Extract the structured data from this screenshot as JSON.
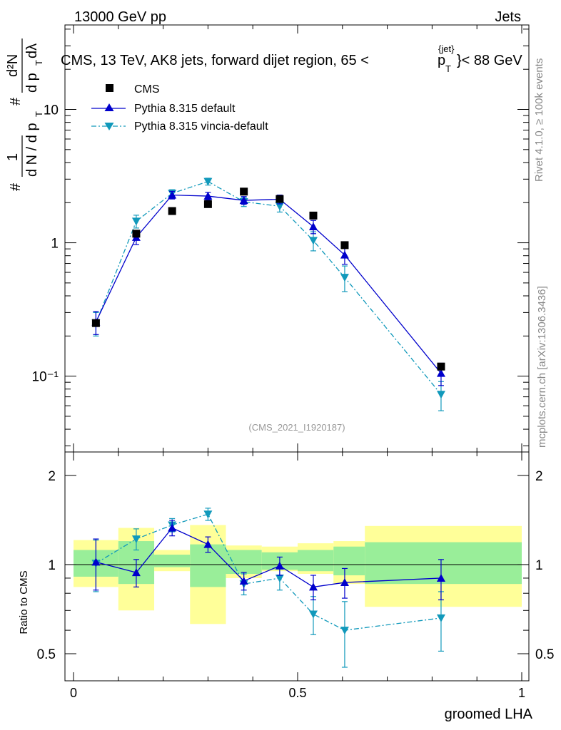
{
  "header": {
    "energy": "13000 GeV pp",
    "category": "Jets"
  },
  "plot_title": {
    "prefix": "CMS, 13 TeV, AK8 jets, forward dijet region, 65 <",
    "p": "p",
    "sub": "T",
    "sup": "{jet}",
    "suffix": "}< 88 GeV"
  },
  "side": {
    "rivet": "Rivet 4.1.0, ≥ 100k events",
    "mcplots": "mcplots.cern.ch [arXiv:1306.3436]"
  },
  "watermark": "(CMS_2021_I1920187)",
  "main_ylabel": {
    "hash": "#",
    "one": "1",
    "dn": "d N / d p",
    "t": "T",
    "d2n": "d²N",
    "dpt": "d p",
    "dlambda": "dλ"
  },
  "legend": {
    "cms": "CMS",
    "pythia_default": "Pythia 8.315 default",
    "pythia_vincia": "Pythia 8.315 vincia-default"
  },
  "colors": {
    "data": "#000000",
    "default": "#0000cc",
    "vincia": "#1199bb",
    "band_outer": "#ffff99",
    "band_inner": "#99ee99"
  },
  "chart_data": [
    {
      "type": "scatter",
      "title": "CMS, 13 TeV, AK8 jets, forward dijet region, 65 < p_T^{jet} < 88 GeV",
      "xlabel": "groomed LHA",
      "ylabel": "1/dN/dpT d²N/dpT dλ",
      "yscale": "log",
      "xlim": [
        0,
        1
      ],
      "ylim": [
        0.027,
        43
      ],
      "ytick_labels": [
        "10⁻¹",
        "1",
        "10"
      ],
      "series": [
        {
          "name": "CMS",
          "x": [
            0.05,
            0.14,
            0.22,
            0.3,
            0.38,
            0.46,
            0.535,
            0.605,
            0.82
          ],
          "values": [
            0.25,
            1.17,
            1.73,
            1.95,
            2.42,
            2.13,
            1.6,
            0.96,
            0.118
          ]
        },
        {
          "name": "Pythia 8.315 default",
          "x": [
            0.05,
            0.14,
            0.22,
            0.3,
            0.38,
            0.46,
            0.535,
            0.605,
            0.82
          ],
          "values": [
            0.255,
            1.1,
            2.28,
            2.24,
            2.08,
            2.12,
            1.32,
            0.81,
            0.105
          ],
          "err": [
            0.05,
            0.13,
            0.15,
            0.15,
            0.14,
            0.16,
            0.15,
            0.12,
            0.02
          ]
        },
        {
          "name": "Pythia 8.315 vincia-default",
          "x": [
            0.05,
            0.14,
            0.22,
            0.3,
            0.38,
            0.46,
            0.535,
            0.605,
            0.82
          ],
          "values": [
            0.25,
            1.45,
            2.35,
            2.88,
            2.03,
            1.88,
            1.04,
            0.55,
            0.073
          ],
          "err": [
            0.05,
            0.16,
            0.15,
            0.17,
            0.16,
            0.18,
            0.17,
            0.12,
            0.018
          ]
        }
      ]
    },
    {
      "type": "scatter",
      "xlabel": "groomed LHA",
      "ylabel": "Ratio to CMS",
      "xlim": [
        0,
        1
      ],
      "ylim": [
        0.405,
        2.4
      ],
      "xtick_labels": [
        "0",
        "0.5",
        "1"
      ],
      "ytick_labels": [
        "0.5",
        "1",
        "2"
      ],
      "bands": {
        "edges": [
          0,
          0.1,
          0.18,
          0.26,
          0.34,
          0.42,
          0.5,
          0.58,
          0.65,
          1.0
        ],
        "outer_low": [
          0.84,
          0.7,
          0.95,
          0.63,
          0.9,
          0.95,
          0.93,
          0.86,
          0.72
        ],
        "outer_high": [
          1.21,
          1.33,
          1.12,
          1.36,
          1.16,
          1.15,
          1.18,
          1.2,
          1.35
        ],
        "inner_low": [
          0.91,
          0.86,
          0.98,
          0.84,
          0.93,
          0.96,
          0.95,
          0.92,
          0.86
        ],
        "inner_high": [
          1.12,
          1.2,
          1.08,
          1.17,
          1.12,
          1.1,
          1.12,
          1.15,
          1.19
        ]
      },
      "series": [
        {
          "name": "Pythia 8.315 default",
          "x": [
            0.05,
            0.14,
            0.22,
            0.3,
            0.38,
            0.46,
            0.535,
            0.605,
            0.82
          ],
          "values": [
            1.02,
            0.94,
            1.33,
            1.17,
            0.88,
            0.99,
            0.84,
            0.87,
            0.9
          ],
          "err": [
            0.2,
            0.1,
            0.08,
            0.07,
            0.06,
            0.07,
            0.08,
            0.1,
            0.14
          ]
        },
        {
          "name": "Pythia 8.315 vincia-default",
          "x": [
            0.05,
            0.14,
            0.22,
            0.3,
            0.38,
            0.46,
            0.535,
            0.605,
            0.82
          ],
          "values": [
            1.01,
            1.22,
            1.36,
            1.48,
            0.86,
            0.9,
            0.68,
            0.6,
            0.66
          ],
          "err": [
            0.2,
            0.1,
            0.07,
            0.07,
            0.07,
            0.08,
            0.1,
            0.15,
            0.15
          ]
        }
      ]
    }
  ]
}
